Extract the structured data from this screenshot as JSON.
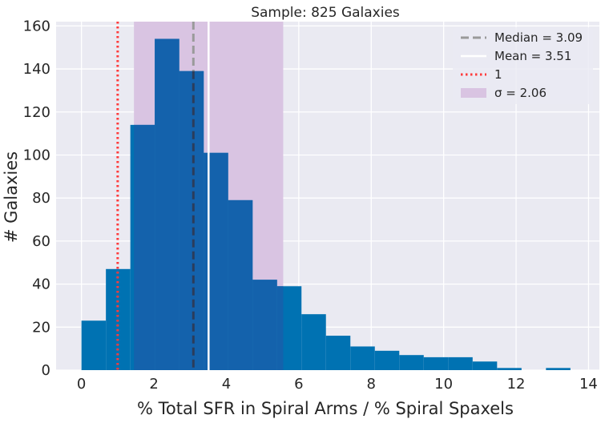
{
  "chart_data": {
    "type": "bar",
    "title": "Sample: 825 Galaxies",
    "xlabel": "% Total SFR in Spiral Arms / % Spiral Spaxels",
    "ylabel": "# Galaxies",
    "xlim": [
      -0.7,
      14.3
    ],
    "ylim": [
      0,
      162
    ],
    "xticks": [
      0,
      2,
      4,
      6,
      8,
      10,
      12,
      14
    ],
    "yticks": [
      0,
      20,
      40,
      60,
      80,
      100,
      120,
      140,
      160
    ],
    "grid": true,
    "legend_position": "top-right",
    "bin_start": 0.0,
    "bin_width": 0.675,
    "counts": [
      23,
      47,
      114,
      154,
      139,
      101,
      79,
      42,
      39,
      26,
      16,
      11,
      9,
      7,
      6,
      6,
      4,
      1,
      0,
      1
    ],
    "median": 3.09,
    "mean": 3.51,
    "reference_line": 1,
    "sigma": 2.06,
    "sigma_band": [
      1.45,
      5.57
    ],
    "colors": {
      "bars": "#0072b2",
      "bars_in_band": "#1462ac",
      "band": "#d9c4e2",
      "median": "#9a9a9a",
      "median_over_bars": "#2b3d5c",
      "mean": "#ffffff",
      "reference": "#ff3b3b",
      "background": "#eaeaf2",
      "grid": "#ffffff"
    },
    "legend": [
      {
        "label": "Median = 3.09",
        "style": "dashed"
      },
      {
        "label": "Mean = 3.51",
        "style": "solid"
      },
      {
        "label": "1",
        "style": "dotted"
      },
      {
        "label": "σ = 2.06",
        "style": "patch"
      }
    ]
  }
}
